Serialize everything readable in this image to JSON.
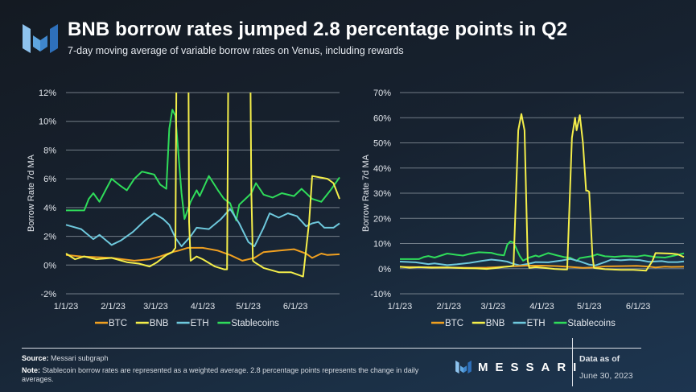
{
  "header": {
    "title": "BNB borrow rates jumped 2.8 percentage points in Q2",
    "subtitle": "7-day moving average of variable borrow rates on Venus, including rewards",
    "logo_icon": "messari-logo-icon"
  },
  "footer": {
    "source_label": "Source:",
    "source_text": " Messari subgraph",
    "note_label": "Note:",
    "note_text": " Stablecoin borrow rates are represented as a weighted average. 2.8 percentage points represents the change in daily averages.",
    "brand": "MESSARI",
    "asof_label": "Data as of",
    "asof_date": "June 30, 2023"
  },
  "colors": {
    "BTC": "#f0a020",
    "BNB": "#f4ee4a",
    "ETH": "#6ec8dc",
    "Stablecoins": "#2fdc5a",
    "grid": "#8a939e"
  },
  "chart_data": [
    {
      "type": "line",
      "title": "",
      "xlabel": "",
      "ylabel": "Borrow Rate 7d MA",
      "x_unit": "days since 1/1/23",
      "xlim": [
        0,
        180
      ],
      "ylim": [
        -2,
        12
      ],
      "yticks": [
        -2,
        0,
        2,
        4,
        6,
        8,
        10,
        12
      ],
      "ytick_labels": [
        "-2%",
        "0%",
        "2%",
        "4%",
        "6%",
        "8%",
        "10%",
        "12%"
      ],
      "xticks": [
        0,
        31,
        59,
        90,
        120,
        151
      ],
      "xtick_labels": [
        "1/1/23",
        "2/1/23",
        "3/1/23",
        "4/1/23",
        "5/1/23",
        "6/1/23"
      ],
      "grid": true,
      "legend": [
        "BTC",
        "BNB",
        "ETH",
        "Stablecoins"
      ],
      "legend_position": "bottom",
      "series_ref": "series"
    },
    {
      "type": "line",
      "title": "",
      "xlabel": "",
      "ylabel": "Borrow Rate 7d MA",
      "x_unit": "days since 1/1/23",
      "xlim": [
        0,
        180
      ],
      "ylim": [
        -10,
        70
      ],
      "yticks": [
        -10,
        0,
        10,
        20,
        30,
        40,
        50,
        60,
        70
      ],
      "ytick_labels": [
        "-10%",
        "0%",
        "10%",
        "20%",
        "30%",
        "40%",
        "50%",
        "60%",
        "70%"
      ],
      "xticks": [
        0,
        31,
        59,
        90,
        120,
        151
      ],
      "xtick_labels": [
        "1/1/23",
        "2/1/23",
        "3/1/23",
        "4/1/23",
        "5/1/23",
        "6/1/23"
      ],
      "grid": true,
      "legend": [
        "BTC",
        "BNB",
        "ETH",
        "Stablecoins"
      ],
      "legend_position": "bottom",
      "series_ref": "series"
    }
  ],
  "series": [
    {
      "name": "BTC",
      "x": [
        0,
        10,
        30,
        45,
        55,
        62,
        70,
        74,
        80,
        90,
        100,
        108,
        116,
        124,
        130,
        140,
        150,
        158,
        162,
        168,
        172,
        180
      ],
      "values": [
        0.7,
        0.6,
        0.5,
        0.3,
        0.4,
        0.6,
        0.9,
        1.0,
        1.2,
        1.2,
        1.0,
        0.7,
        0.3,
        0.5,
        0.9,
        1.0,
        1.1,
        0.8,
        0.5,
        0.8,
        0.7,
        0.75
      ]
    },
    {
      "name": "BNB",
      "x": [
        0,
        6,
        12,
        20,
        30,
        40,
        48,
        55,
        60,
        66,
        70,
        72,
        75,
        77,
        79,
        81,
        82,
        86,
        90,
        98,
        104,
        106,
        109,
        111,
        112,
        114,
        116,
        118,
        119,
        120,
        122,
        123,
        124,
        130,
        140,
        148,
        156,
        160,
        162,
        172,
        176,
        180
      ],
      "values": [
        0.8,
        0.4,
        0.6,
        0.4,
        0.5,
        0.2,
        0.1,
        -0.1,
        0.2,
        0.7,
        0.9,
        1.2,
        55,
        61.5,
        55,
        3,
        0.3,
        0.6,
        0.4,
        -0.1,
        -0.3,
        -0.3,
        52,
        60,
        55,
        61,
        50,
        31,
        31,
        30.5,
        5,
        0.3,
        0.2,
        -0.2,
        -0.5,
        -0.5,
        -0.8,
        3,
        6.2,
        6.0,
        5.7,
        4.6
      ]
    },
    {
      "name": "ETH",
      "x": [
        0,
        10,
        18,
        22,
        30,
        36,
        44,
        52,
        58,
        64,
        68,
        72,
        76,
        82,
        86,
        94,
        102,
        108,
        114,
        120,
        124,
        130,
        134,
        140,
        146,
        152,
        158,
        162,
        166,
        170,
        176,
        180
      ],
      "values": [
        2.8,
        2.5,
        1.8,
        2.1,
        1.4,
        1.7,
        2.3,
        3.1,
        3.6,
        3.2,
        2.8,
        1.9,
        1.3,
        2.0,
        2.6,
        2.5,
        3.2,
        3.9,
        2.9,
        1.6,
        1.3,
        2.6,
        3.6,
        3.3,
        3.6,
        3.4,
        2.7,
        2.9,
        3.0,
        2.6,
        2.6,
        2.9
      ]
    },
    {
      "name": "Stablecoins",
      "x": [
        0,
        12,
        15,
        18,
        22,
        26,
        30,
        36,
        40,
        45,
        50,
        54,
        58,
        62,
        66,
        68,
        70,
        72,
        76,
        78,
        82,
        86,
        88,
        94,
        100,
        104,
        108,
        112,
        114,
        120,
        122,
        125,
        130,
        136,
        142,
        150,
        155,
        162,
        168,
        174,
        180
      ],
      "values": [
        3.8,
        3.8,
        4.6,
        5.0,
        4.4,
        5.2,
        6.0,
        5.5,
        5.2,
        6.0,
        6.5,
        6.4,
        6.3,
        5.6,
        5.3,
        9.5,
        10.8,
        10.4,
        5.0,
        3.2,
        4.4,
        5.2,
        4.8,
        6.2,
        5.2,
        4.6,
        4.3,
        3.1,
        4.2,
        4.8,
        5.0,
        5.7,
        4.9,
        4.7,
        5.0,
        4.8,
        5.3,
        4.6,
        4.4,
        5.2,
        6.1
      ]
    }
  ]
}
